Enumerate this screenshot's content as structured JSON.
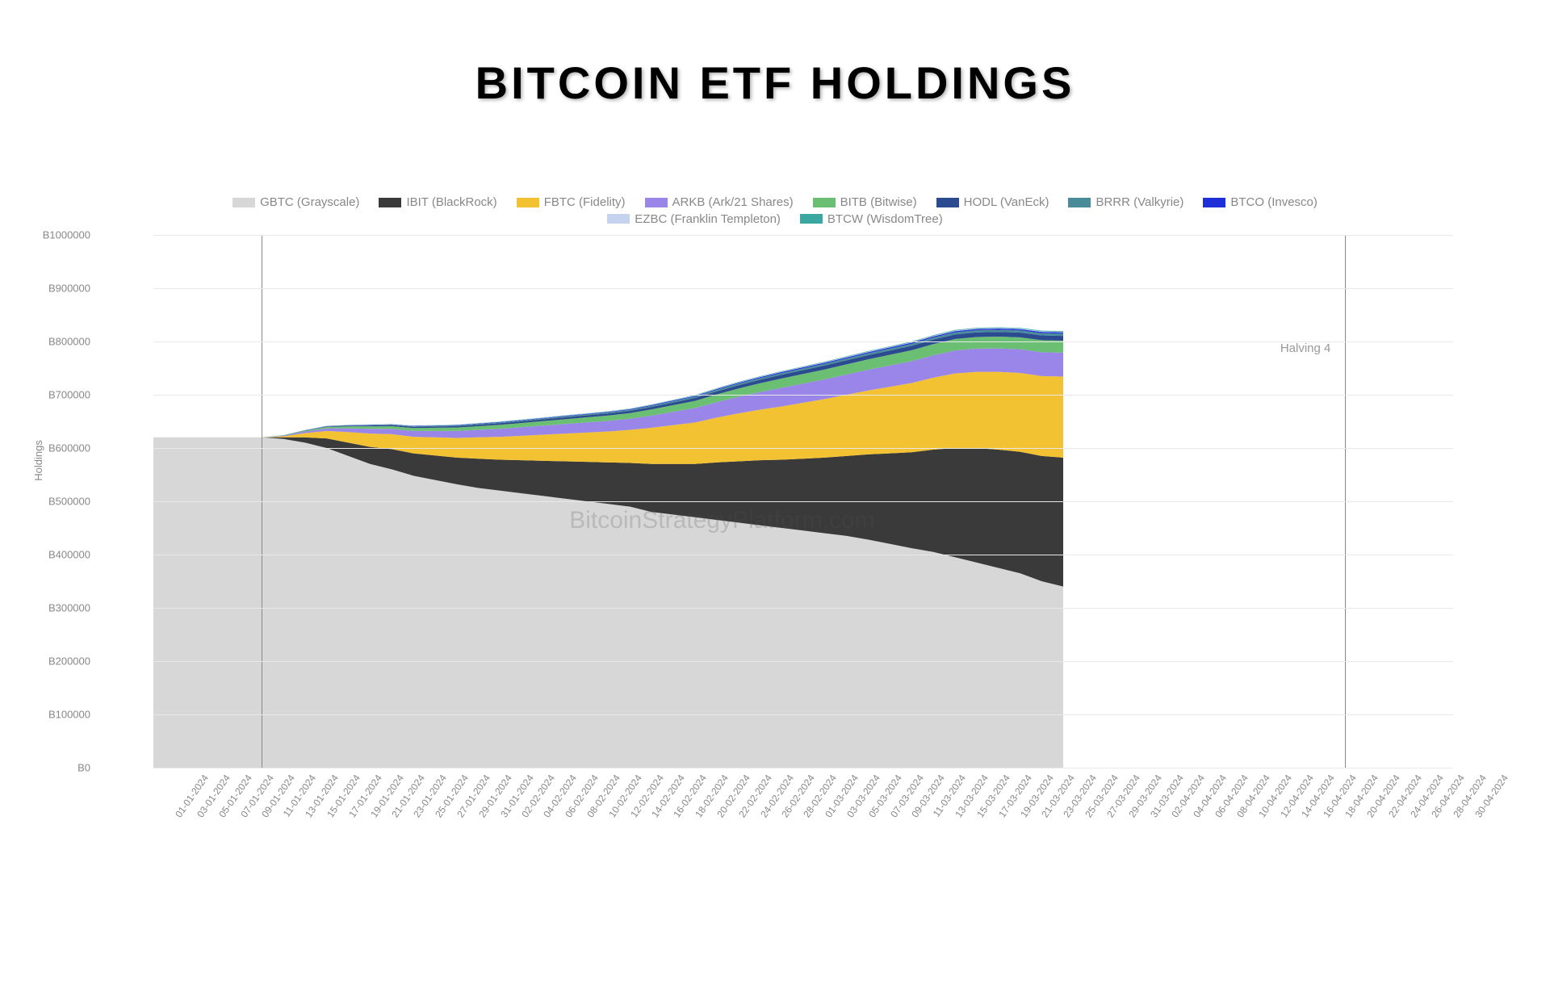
{
  "title": "BITCOIN  ETF  HOLDINGS",
  "chart": {
    "type": "stacked-area",
    "ylabel": "Holdings",
    "background_color": "#ffffff",
    "grid_color": "#e8e8e8",
    "title_fontsize": 56,
    "label_fontsize": 13,
    "tick_fontsize": 13,
    "ylim": [
      0,
      1000000
    ],
    "ytick_step": 100000,
    "ytick_prefix": "B",
    "yticks": [
      "B0",
      "B100000",
      "B200000",
      "B300000",
      "B400000",
      "B500000",
      "B600000",
      "B700000",
      "B800000",
      "B900000",
      "B1000000"
    ],
    "watermark": "BitcoinStrategyPlatform.com",
    "vlines": [
      {
        "x_index": 5,
        "label": null
      },
      {
        "x_index": 55,
        "label": "Halving 4"
      }
    ],
    "series": [
      {
        "key": "GBTC",
        "label": "GBTC (Grayscale)",
        "color": "#d7d7d7"
      },
      {
        "key": "IBIT",
        "label": "IBIT (BlackRock)",
        "color": "#3a3a3a"
      },
      {
        "key": "FBTC",
        "label": "FBTC (Fidelity)",
        "color": "#f2c233"
      },
      {
        "key": "ARKB",
        "label": "ARKB (Ark/21 Shares)",
        "color": "#9a86e8"
      },
      {
        "key": "BITB",
        "label": "BITB (Bitwise)",
        "color": "#6bbf73"
      },
      {
        "key": "HODL",
        "label": "HODL (VanEck)",
        "color": "#2b4a8f"
      },
      {
        "key": "BRRR",
        "label": "BRRR (Valkyrie)",
        "color": "#4a8b9a"
      },
      {
        "key": "BTCO",
        "label": "BTCO (Invesco)",
        "color": "#2030d8"
      },
      {
        "key": "EZBC",
        "label": "EZBC (Franklin Templeton)",
        "color": "#c6d3ef"
      },
      {
        "key": "BTCW",
        "label": "BTCW (WisdomTree)",
        "color": "#3aa7a0"
      }
    ],
    "legend_rows": [
      [
        "GBTC",
        "IBIT",
        "FBTC",
        "ARKB",
        "BITB",
        "HODL",
        "BRRR",
        "BTCO"
      ],
      [
        "EZBC",
        "BTCW"
      ]
    ],
    "x_dates": [
      "01-01-2024",
      "03-01-2024",
      "05-01-2024",
      "07-01-2024",
      "09-01-2024",
      "11-01-2024",
      "13-01-2024",
      "15-01-2024",
      "17-01-2024",
      "19-01-2024",
      "21-01-2024",
      "23-01-2024",
      "25-01-2024",
      "27-01-2024",
      "29-01-2024",
      "31-01-2024",
      "02-02-2024",
      "04-02-2024",
      "06-02-2024",
      "08-02-2024",
      "10-02-2024",
      "12-02-2024",
      "14-02-2024",
      "16-02-2024",
      "18-02-2024",
      "20-02-2024",
      "22-02-2024",
      "24-02-2024",
      "26-02-2024",
      "28-02-2024",
      "01-03-2024",
      "03-03-2024",
      "05-03-2024",
      "07-03-2024",
      "09-03-2024",
      "11-03-2024",
      "13-03-2024",
      "15-03-2024",
      "17-03-2024",
      "19-03-2024",
      "21-03-2024",
      "23-03-2024",
      "25-03-2024",
      "27-03-2024",
      "29-03-2024",
      "31-03-2024",
      "02-04-2024",
      "04-04-2024",
      "06-04-2024",
      "08-04-2024",
      "10-04-2024",
      "12-04-2024",
      "14-04-2024",
      "16-04-2024",
      "18-04-2024",
      "20-04-2024",
      "22-04-2024",
      "24-04-2024",
      "26-04-2024",
      "28-04-2024",
      "30-04-2024"
    ],
    "data_end_index": 42,
    "data": {
      "GBTC": [
        620000,
        620000,
        620000,
        620000,
        620000,
        620000,
        617000,
        610000,
        600000,
        585000,
        570000,
        560000,
        548000,
        540000,
        532000,
        525000,
        520000,
        515000,
        510000,
        505000,
        500000,
        495000,
        490000,
        480000,
        475000,
        470000,
        465000,
        460000,
        455000,
        450000,
        445000,
        440000,
        435000,
        428000,
        420000,
        412000,
        405000,
        395000,
        385000,
        375000,
        365000,
        350000,
        340000
      ],
      "IBIT": [
        0,
        0,
        0,
        0,
        0,
        0,
        3000,
        10000,
        18000,
        25000,
        32000,
        38000,
        42000,
        46000,
        50000,
        55000,
        58000,
        62000,
        66000,
        70000,
        74000,
        78000,
        82000,
        90000,
        95000,
        100000,
        108000,
        115000,
        122000,
        128000,
        135000,
        142000,
        150000,
        160000,
        170000,
        180000,
        192000,
        205000,
        215000,
        222000,
        228000,
        235000,
        242000
      ],
      "FBTC": [
        0,
        0,
        0,
        0,
        0,
        0,
        2000,
        8000,
        14000,
        20000,
        25000,
        28000,
        31000,
        34000,
        37000,
        40000,
        43000,
        46000,
        49000,
        52000,
        55000,
        58000,
        62000,
        68000,
        73000,
        78000,
        84000,
        90000,
        95000,
        100000,
        105000,
        110000,
        115000,
        120000,
        125000,
        130000,
        135000,
        140000,
        143000,
        146000,
        148000,
        150000,
        152000
      ],
      "ARKB": [
        0,
        0,
        0,
        0,
        0,
        0,
        1000,
        3000,
        5000,
        7000,
        9000,
        10000,
        11000,
        12000,
        13000,
        14000,
        15000,
        16000,
        17000,
        18000,
        19000,
        20000,
        21000,
        23000,
        25000,
        27000,
        29000,
        31000,
        33000,
        35000,
        36000,
        37000,
        38000,
        39000,
        40000,
        41000,
        42000,
        43000,
        43500,
        44000,
        44500,
        45000,
        45000
      ],
      "BITB": [
        0,
        0,
        0,
        0,
        0,
        0,
        500,
        1500,
        2500,
        3500,
        4500,
        5000,
        5500,
        6000,
        6500,
        7000,
        7500,
        8000,
        8500,
        9000,
        9500,
        10000,
        10500,
        11500,
        12500,
        13500,
        14500,
        15500,
        16500,
        17500,
        18000,
        18500,
        19000,
        19500,
        20000,
        20500,
        21000,
        21500,
        21800,
        22000,
        22200,
        22400,
        22500
      ],
      "HODL": [
        0,
        0,
        0,
        0,
        0,
        0,
        200,
        600,
        1000,
        1400,
        1800,
        2000,
        2200,
        2400,
        2600,
        2800,
        3000,
        3200,
        3400,
        3600,
        3800,
        4000,
        4200,
        4600,
        5000,
        5400,
        5800,
        6200,
        6600,
        7000,
        7200,
        7400,
        7600,
        7800,
        8000,
        8200,
        8400,
        8600,
        8700,
        8800,
        8900,
        9000,
        9000
      ],
      "BRRR": [
        0,
        0,
        0,
        0,
        0,
        0,
        100,
        300,
        500,
        700,
        900,
        1000,
        1100,
        1200,
        1300,
        1400,
        1500,
        1600,
        1700,
        1800,
        1900,
        2000,
        2100,
        2300,
        2500,
        2700,
        2900,
        3100,
        3200,
        3300,
        3400,
        3500,
        3600,
        3700,
        3800,
        3900,
        4000,
        4100,
        4150,
        4200,
        4250,
        4300,
        4300
      ],
      "BTCO": [
        0,
        0,
        0,
        0,
        0,
        0,
        100,
        200,
        300,
        400,
        500,
        550,
        600,
        650,
        700,
        750,
        800,
        850,
        900,
        950,
        1000,
        1050,
        1100,
        1200,
        1300,
        1400,
        1500,
        1600,
        1700,
        1800,
        1850,
        1900,
        1950,
        2000,
        2050,
        2100,
        2150,
        2200,
        2225,
        2250,
        2275,
        2300,
        2300
      ],
      "EZBC": [
        0,
        0,
        0,
        0,
        0,
        0,
        50,
        100,
        150,
        200,
        250,
        275,
        300,
        325,
        350,
        375,
        400,
        425,
        450,
        475,
        500,
        525,
        550,
        600,
        650,
        700,
        750,
        800,
        850,
        900,
        925,
        950,
        975,
        1000,
        1025,
        1050,
        1075,
        1100,
        1115,
        1130,
        1145,
        1160,
        1160
      ],
      "BTCW": [
        0,
        0,
        0,
        0,
        0,
        0,
        50,
        100,
        150,
        200,
        250,
        275,
        300,
        325,
        350,
        375,
        400,
        425,
        450,
        475,
        500,
        525,
        550,
        600,
        650,
        700,
        750,
        800,
        850,
        900,
        925,
        950,
        975,
        1000,
        1025,
        1050,
        1075,
        1100,
        1115,
        1130,
        1145,
        1160,
        1160
      ]
    }
  }
}
